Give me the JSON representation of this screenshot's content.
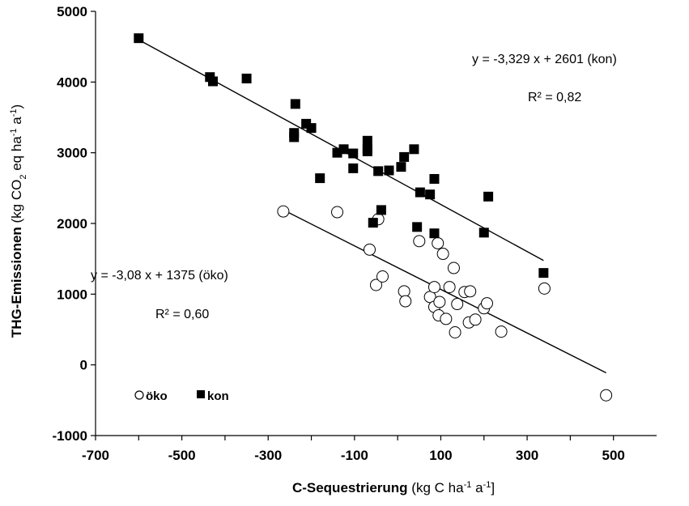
{
  "chart_data": {
    "type": "scatter",
    "xlabel": {
      "main": "C-Sequestrierung",
      "unit": "(kg C ha-1 a-1]"
    },
    "ylabel": {
      "main": "THG-Emissionen",
      "unit": "(kg CO2 eq ha-1 a-1)"
    },
    "xlim": [
      -700,
      600
    ],
    "ylim": [
      -1000,
      5000
    ],
    "xticks": [
      -700,
      -500,
      -300,
      -100,
      100,
      300,
      500
    ],
    "yticks": [
      -1000,
      0,
      1000,
      2000,
      3000,
      4000,
      5000
    ],
    "xtick_labels": [
      "-700",
      "-500",
      "-300",
      "-100",
      "100",
      "300",
      "500"
    ],
    "ytick_labels": [
      "-1000",
      "0",
      "1000",
      "2000",
      "3000",
      "4000",
      "5000"
    ],
    "grid": false,
    "legend_position": "bottom-left",
    "series": [
      {
        "name": "öko",
        "marker": "open-circle",
        "points": [
          [
            -265,
            2170
          ],
          [
            -140,
            2160
          ],
          [
            -65,
            1630
          ],
          [
            -45,
            2060
          ],
          [
            -50,
            1130
          ],
          [
            -35,
            1250
          ],
          [
            15,
            1040
          ],
          [
            18,
            900
          ],
          [
            50,
            1750
          ],
          [
            75,
            960
          ],
          [
            85,
            1100
          ],
          [
            85,
            820
          ],
          [
            93,
            1720
          ],
          [
            95,
            700
          ],
          [
            97,
            890
          ],
          [
            105,
            1570
          ],
          [
            112,
            650
          ],
          [
            120,
            1100
          ],
          [
            130,
            1370
          ],
          [
            133,
            460
          ],
          [
            138,
            860
          ],
          [
            155,
            1030
          ],
          [
            165,
            600
          ],
          [
            168,
            1040
          ],
          [
            180,
            640
          ],
          [
            200,
            800
          ],
          [
            207,
            870
          ],
          [
            240,
            470
          ],
          [
            340,
            1080
          ],
          [
            483,
            -430
          ]
        ]
      },
      {
        "name": "kon",
        "marker": "filled-square",
        "points": [
          [
            -600,
            4620
          ],
          [
            -435,
            4070
          ],
          [
            -428,
            4010
          ],
          [
            -350,
            4050
          ],
          [
            -237,
            3690
          ],
          [
            -240,
            3280
          ],
          [
            -240,
            3220
          ],
          [
            -212,
            3410
          ],
          [
            -200,
            3350
          ],
          [
            -180,
            2640
          ],
          [
            -140,
            3000
          ],
          [
            -125,
            3050
          ],
          [
            -103,
            2990
          ],
          [
            -103,
            2780
          ],
          [
            -70,
            3170
          ],
          [
            -70,
            3050
          ],
          [
            -70,
            3020
          ],
          [
            -57,
            2010
          ],
          [
            -45,
            2740
          ],
          [
            -38,
            2190
          ],
          [
            -20,
            2750
          ],
          [
            8,
            2800
          ],
          [
            15,
            2940
          ],
          [
            38,
            3050
          ],
          [
            45,
            1950
          ],
          [
            52,
            2440
          ],
          [
            75,
            2410
          ],
          [
            85,
            2630
          ],
          [
            85,
            1860
          ],
          [
            200,
            1870
          ],
          [
            210,
            2380
          ],
          [
            338,
            1300
          ]
        ]
      }
    ],
    "regressions": [
      {
        "series": "kon",
        "slope": -3.329,
        "intercept": 2601,
        "x_range": [
          -600,
          338
        ]
      },
      {
        "series": "öko",
        "slope": -3.08,
        "intercept": 1375,
        "x_range": [
          -265,
          483
        ]
      }
    ],
    "annotations": {
      "kon_equation": "y = -3,329 x + 2601 (kon)",
      "kon_r2": "R² = 0,82",
      "oko_equation": "y = -3,08 x + 1375 (öko)",
      "oko_r2": "R² = 0,60"
    },
    "legend": [
      {
        "label": "öko",
        "marker": "open-circle"
      },
      {
        "label": "kon",
        "marker": "filled-square"
      }
    ]
  }
}
